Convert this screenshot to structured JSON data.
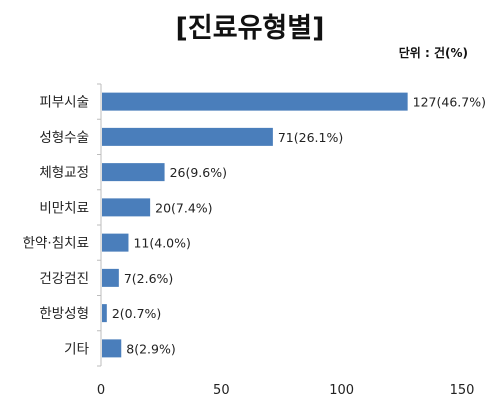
{
  "chart_data": {
    "type": "bar",
    "orientation": "horizontal",
    "title": "[진료유형별]",
    "unit": "단위 : 건(%)",
    "categories": [
      "피부시술",
      "성형수술",
      "체형교정",
      "비만치료",
      "한약·침치료",
      "건강검진",
      "한방성형",
      "기타"
    ],
    "values": [
      127,
      71,
      26,
      20,
      11,
      7,
      2,
      8
    ],
    "data_labels": [
      "127(46.7%)",
      "71(26.1%)",
      "26(9.6%)",
      "20(7.4%)",
      "11(4.0%)",
      "7(2.6%)",
      "2(0.7%)",
      "8(2.9%)"
    ],
    "xlim": [
      0,
      150
    ],
    "xticks": [
      "0",
      "50",
      "100",
      "150"
    ],
    "bar_color": "#4a7ebb",
    "grid": false,
    "legend": "none"
  }
}
